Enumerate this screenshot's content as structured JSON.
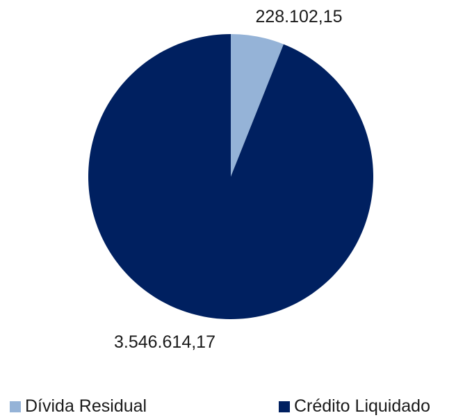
{
  "chart_data": {
    "type": "pie",
    "slices": [
      {
        "label": "Dívida Residual",
        "value": 228102.15,
        "display": "228.102,15",
        "color": "#95B3D7"
      },
      {
        "label": "Crédito Liquidado",
        "value": 3546614.17,
        "display": "3.546.614,17",
        "color": "#002060"
      }
    ],
    "legend_position": "bottom"
  }
}
